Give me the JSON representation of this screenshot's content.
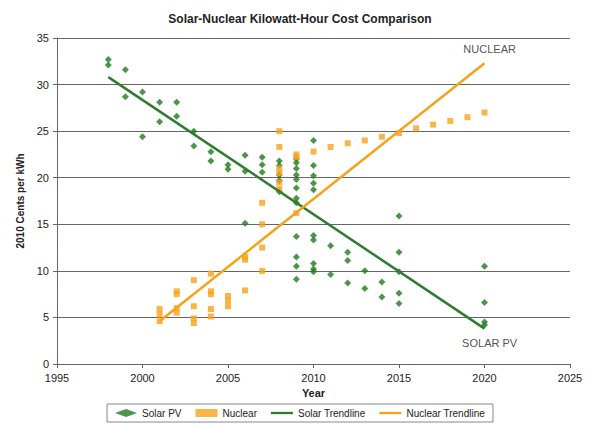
{
  "chart_data": {
    "type": "scatter",
    "title": "Solar-Nuclear Kilowatt-Hour Cost Comparison",
    "x_label": "Year",
    "y_label": "2010 Cents per kWh",
    "xlim": [
      1995,
      2025
    ],
    "xticks": [
      1995,
      2000,
      2005,
      2010,
      2015,
      2020,
      2025
    ],
    "ylim": [
      0,
      35
    ],
    "yticks": [
      0,
      5,
      10,
      15,
      20,
      25,
      30,
      35
    ],
    "grid": true,
    "legend": "bottom",
    "series": [
      {
        "name": "Solar PV",
        "type": "scatter",
        "marker": "diamond",
        "color": "#217a21",
        "x": [
          1998,
          1998,
          1999,
          1999,
          2000,
          2000,
          2001,
          2001,
          2002,
          2002,
          2003,
          2003,
          2004,
          2004,
          2005,
          2005,
          2006,
          2006,
          2006,
          2007,
          2007,
          2007,
          2008,
          2008,
          2008,
          2008,
          2008,
          2009,
          2009,
          2009,
          2009,
          2009,
          2009,
          2009,
          2009,
          2009,
          2009,
          2009,
          2009,
          2010,
          2010,
          2010,
          2010,
          2010,
          2010,
          2010,
          2010,
          2010,
          2010,
          2011,
          2011,
          2012,
          2012,
          2012,
          2013,
          2013,
          2014,
          2014,
          2015,
          2015,
          2015,
          2015,
          2015,
          2020,
          2020,
          2020,
          2020
        ],
        "values": [
          32.7,
          32.1,
          31.6,
          28.7,
          29.2,
          24.4,
          28.1,
          26.0,
          28.1,
          26.6,
          25.0,
          23.4,
          22.8,
          21.8,
          21.4,
          20.9,
          22.4,
          20.7,
          15.1,
          22.2,
          21.4,
          20.6,
          21.8,
          21.3,
          20.3,
          19.7,
          18.5,
          22.0,
          21.6,
          21.0,
          20.3,
          19.8,
          18.9,
          17.8,
          17.3,
          13.7,
          11.5,
          10.5,
          9.1,
          24.0,
          21.3,
          20.2,
          19.4,
          18.7,
          13.8,
          13.3,
          10.8,
          10.2,
          9.9,
          12.7,
          9.6,
          12.0,
          11.1,
          8.7,
          10.0,
          8.1,
          8.8,
          7.2,
          15.9,
          12.0,
          9.9,
          7.6,
          6.5,
          10.5,
          6.6,
          4.5,
          4.2
        ]
      },
      {
        "name": "Nuclear",
        "type": "scatter",
        "marker": "square",
        "color": "#f7a21b",
        "x": [
          2001,
          2001,
          2001,
          2002,
          2002,
          2002,
          2002,
          2003,
          2003,
          2003,
          2003,
          2004,
          2004,
          2004,
          2004,
          2004,
          2005,
          2005,
          2005,
          2006,
          2006,
          2006,
          2007,
          2007,
          2007,
          2007,
          2008,
          2008,
          2008,
          2008,
          2008,
          2008,
          2009,
          2009,
          2009,
          2010,
          2011,
          2012,
          2013,
          2014,
          2015,
          2016,
          2017,
          2018,
          2019,
          2020
        ],
        "values": [
          5.9,
          5.3,
          4.6,
          7.8,
          7.5,
          6.0,
          5.5,
          9.0,
          6.2,
          4.9,
          4.4,
          9.7,
          7.8,
          7.5,
          5.9,
          5.1,
          7.3,
          6.8,
          6.2,
          11.5,
          11.2,
          7.9,
          17.3,
          15.0,
          12.5,
          10.0,
          25.0,
          23.3,
          21.0,
          20.5,
          19.5,
          18.8,
          22.5,
          22.2,
          16.2,
          22.8,
          23.3,
          23.7,
          24.0,
          24.4,
          24.8,
          25.3,
          25.7,
          26.1,
          26.5,
          27.0
        ]
      },
      {
        "name": "Solar Trendline",
        "type": "line",
        "line_style": "solid",
        "color": "#2e7d2e",
        "x": [
          1998,
          2020
        ],
        "values": [
          30.8,
          3.8
        ]
      },
      {
        "name": "Nuclear Trendline",
        "type": "line",
        "line_style": "solid",
        "color": "#f5a31a",
        "x": [
          2001,
          2020
        ],
        "values": [
          4.6,
          32.3
        ]
      }
    ],
    "annotations": [
      {
        "text": "NUCLEAR",
        "x": 2020.3,
        "y": 33.8
      },
      {
        "text": "SOLAR PV",
        "x": 2020.3,
        "y": 2.3
      }
    ]
  }
}
